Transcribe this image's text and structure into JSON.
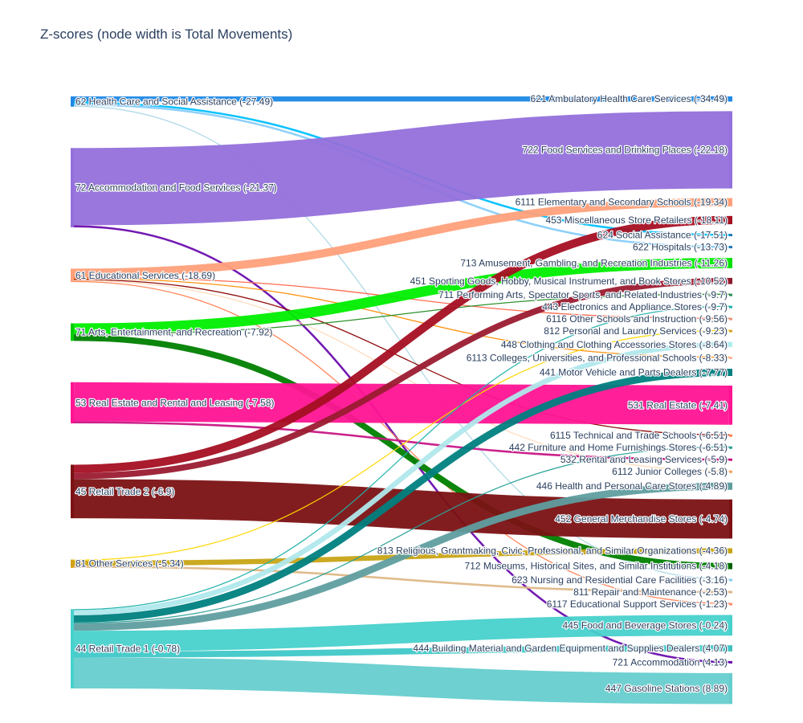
{
  "chart_data": {
    "type": "sankey",
    "title": "Z-scores (node width is Total Movements)",
    "source_nodes": [
      {
        "id": "s62",
        "label": "62 Health Care and Social Assistance (-27.49)",
        "color": "#1e88e5"
      },
      {
        "id": "s72",
        "label": "72 Accommodation and Food Services (-21.37)",
        "color": "#9370db"
      },
      {
        "id": "s61",
        "label": "61 Educational Services (-18.69)",
        "color": "#ffa07a"
      },
      {
        "id": "s71",
        "label": "71 Arts, Entertainment, and Recreation (-7.92)",
        "color": "#00cc00"
      },
      {
        "id": "s53",
        "label": "53 Real Estate and Rental and Leasing (-7.58)",
        "color": "#ff1493"
      },
      {
        "id": "s45",
        "label": "45 Retail Trade 2 (-6.9)",
        "color": "#7b1113"
      },
      {
        "id": "s81",
        "label": "81 Other Services (-5.34)",
        "color": "#d4a017"
      },
      {
        "id": "s44",
        "label": "44 Retail Trade 1 (-0.78)",
        "color": "#48d1cc"
      }
    ],
    "target_nodes": [
      {
        "id": "t621",
        "label": "621 Ambulatory Health Care Services (-34.49)",
        "color": "#1e88e5"
      },
      {
        "id": "t722",
        "label": "722 Food Services and Drinking Places (-22.18)",
        "color": "#9370db"
      },
      {
        "id": "t6111",
        "label": "6111 Elementary and Secondary Schools (-19.34)",
        "color": "#ffa07a"
      },
      {
        "id": "t453",
        "label": "453 Miscellaneous Store Retailers (-18.11)",
        "color": "#a50f22"
      },
      {
        "id": "t624",
        "label": "624 Social Assistance (-17.51)",
        "color": "#1f77b4"
      },
      {
        "id": "t622",
        "label": "622 Hospitals (-13.73)",
        "color": "#1f77b4"
      },
      {
        "id": "t713",
        "label": "713 Amusement, Gambling, and Recreation Industries (-11.26)",
        "color": "#00dd00"
      },
      {
        "id": "t451",
        "label": "451 Sporting Goods, Hobby, Musical Instrument, and Book Stores (-10.52)",
        "color": "#8b1a2b"
      },
      {
        "id": "t711",
        "label": "711 Performing Arts, Spectator Sports, and Related Industries (-9.7)",
        "color": "#2e8b57"
      },
      {
        "id": "t443",
        "label": "443 Electronics and Appliance Stores (-9.7)",
        "color": "#20b2aa"
      },
      {
        "id": "t6116",
        "label": "6116 Other Schools and Instruction (-9.56)",
        "color": "#e9967a"
      },
      {
        "id": "t812",
        "label": "812 Personal and Laundry Services (-9.23)",
        "color": "#daa520"
      },
      {
        "id": "t448",
        "label": "448 Clothing and Clothing Accessories Stores (-8.64)",
        "color": "#afeeee"
      },
      {
        "id": "t6113",
        "label": "6113 Colleges, Universities, and Professional Schools (-8.33)",
        "color": "#ffb6a0"
      },
      {
        "id": "t441",
        "label": "441 Motor Vehicle and Parts Dealers (-7.77)",
        "color": "#008080"
      },
      {
        "id": "t531",
        "label": "531 Real Estate (-7.41)",
        "color": "#ff1493"
      },
      {
        "id": "t6115",
        "label": "6115 Technical and Trade Schools (-6.51)",
        "color": "#ff7f50"
      },
      {
        "id": "t442",
        "label": "442 Furniture and Home Furnishings Stores (-6.51)",
        "color": "#2aa198"
      },
      {
        "id": "t532",
        "label": "532 Rental and Leasing Services (-5.9)",
        "color": "#c71585"
      },
      {
        "id": "t6112",
        "label": "6112 Junior Colleges (-5.8)",
        "color": "#f4a460"
      },
      {
        "id": "t446",
        "label": "446 Health and Personal Care Stores (-4.89)",
        "color": "#5f9ea0"
      },
      {
        "id": "t452",
        "label": "452 General Merchandise Stores (-4.74)",
        "color": "#7b1113"
      },
      {
        "id": "t813",
        "label": "813 Religious, Grantmaking, Civic, Professional, and Similar Organizations (-4.36)",
        "color": "#c8a415"
      },
      {
        "id": "t712",
        "label": "712 Museums, Historical Sites, and Similar Institutions (-4.18)",
        "color": "#006400"
      },
      {
        "id": "t623",
        "label": "623 Nursing and Residential Care Facilities (-3.16)",
        "color": "#87ceeb"
      },
      {
        "id": "t811",
        "label": "811 Repair and Maintenance (-2.53)",
        "color": "#deb887"
      },
      {
        "id": "t6117",
        "label": "6117 Educational Support Services (-1.23)",
        "color": "#ff8c69"
      },
      {
        "id": "t445",
        "label": "445 Food and Beverage Stores (-0.24)",
        "color": "#48d1cc"
      },
      {
        "id": "t444",
        "label": "444 Building Material and Garden Equipment and Supplies Dealers (4.07)",
        "color": "#40c0c0"
      },
      {
        "id": "t721",
        "label": "721 Accommodation (4.13)",
        "color": "#6a0dad"
      },
      {
        "id": "t447",
        "label": "447 Gasoline Stations (8.89)",
        "color": "#66cdcd"
      }
    ],
    "links": [
      {
        "source": "s62",
        "target": "t621",
        "value": 5,
        "color": "#1e88e5"
      },
      {
        "source": "s62",
        "target": "t624",
        "value": 2,
        "color": "#00bfff"
      },
      {
        "source": "s62",
        "target": "t622",
        "value": 2,
        "color": "#87cefa"
      },
      {
        "source": "s62",
        "target": "t623",
        "value": 1,
        "color": "#add8e6"
      },
      {
        "source": "s72",
        "target": "t722",
        "value": 75,
        "color": "#9370db"
      },
      {
        "source": "s72",
        "target": "t721",
        "value": 2,
        "color": "#6a0dad"
      },
      {
        "source": "s61",
        "target": "t6111",
        "value": 8,
        "color": "#ffa07a"
      },
      {
        "source": "s61",
        "target": "t6116",
        "value": 1,
        "color": "#ff6347"
      },
      {
        "source": "s61",
        "target": "t6113",
        "value": 1,
        "color": "#ff8c00"
      },
      {
        "source": "s61",
        "target": "t6115",
        "value": 1,
        "color": "#8b0000"
      },
      {
        "source": "s61",
        "target": "t6112",
        "value": 1,
        "color": "#ffdab9"
      },
      {
        "source": "s61",
        "target": "t6117",
        "value": 1,
        "color": "#ff7f50"
      },
      {
        "source": "s71",
        "target": "t713",
        "value": 10,
        "color": "#00ee00"
      },
      {
        "source": "s71",
        "target": "t711",
        "value": 1,
        "color": "#228b22"
      },
      {
        "source": "s71",
        "target": "t712",
        "value": 6,
        "color": "#008000"
      },
      {
        "source": "s53",
        "target": "t531",
        "value": 38,
        "color": "#ff1493"
      },
      {
        "source": "s53",
        "target": "t532",
        "value": 2,
        "color": "#c71585"
      },
      {
        "source": "s45",
        "target": "t453",
        "value": 8,
        "color": "#a50f22"
      },
      {
        "source": "s45",
        "target": "t451",
        "value": 6,
        "color": "#9b1b30"
      },
      {
        "source": "s45",
        "target": "t452",
        "value": 38,
        "color": "#7b1113"
      },
      {
        "source": "s81",
        "target": "t812",
        "value": 1,
        "color": "#ffd700"
      },
      {
        "source": "s81",
        "target": "t813",
        "value": 5,
        "color": "#c8a415"
      },
      {
        "source": "s81",
        "target": "t811",
        "value": 2,
        "color": "#deb887"
      },
      {
        "source": "s44",
        "target": "t443",
        "value": 1,
        "color": "#20b2aa"
      },
      {
        "source": "s44",
        "target": "t448",
        "value": 5,
        "color": "#b0e8ec"
      },
      {
        "source": "s44",
        "target": "t441",
        "value": 7,
        "color": "#008080"
      },
      {
        "source": "s44",
        "target": "t442",
        "value": 1,
        "color": "#2aa198"
      },
      {
        "source": "s44",
        "target": "t446",
        "value": 7,
        "color": "#5f9ea0"
      },
      {
        "source": "s44",
        "target": "t445",
        "value": 20,
        "color": "#48d1cc"
      },
      {
        "source": "s44",
        "target": "t444",
        "value": 6,
        "color": "#40c8c8"
      },
      {
        "source": "s44",
        "target": "t447",
        "value": 30,
        "color": "#66cdcd"
      }
    ]
  }
}
